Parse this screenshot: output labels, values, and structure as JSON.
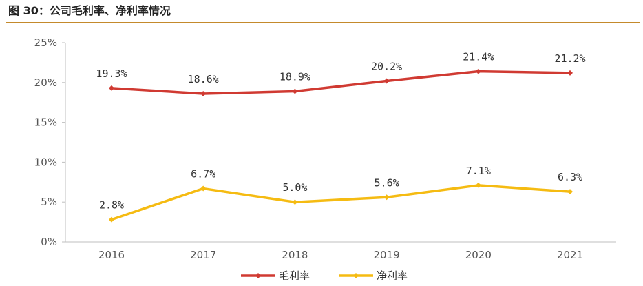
{
  "figure": {
    "title": "图 30：公司毛利率、净利率情况"
  },
  "colors": {
    "accent_rule": "#c48a2c",
    "gross": "#d03a32",
    "net": "#f5bb12"
  },
  "chart_data": {
    "type": "line",
    "categories": [
      "2016",
      "2017",
      "2018",
      "2019",
      "2020",
      "2021"
    ],
    "ylim": [
      0,
      25
    ],
    "yticks": [
      0,
      5,
      10,
      15,
      20,
      25
    ],
    "ytick_labels": [
      "0%",
      "5%",
      "10%",
      "15%",
      "20%",
      "25%"
    ],
    "grid": false,
    "legend_position": "bottom",
    "series": [
      {
        "name": "毛利率",
        "values": [
          19.3,
          18.6,
          18.9,
          20.2,
          21.4,
          21.2
        ],
        "labels": [
          "19.3%",
          "18.6%",
          "18.9%",
          "20.2%",
          "21.4%",
          "21.2%"
        ]
      },
      {
        "name": "净利率",
        "values": [
          2.8,
          6.7,
          5.0,
          5.6,
          7.1,
          6.3
        ],
        "labels": [
          "2.8%",
          "6.7%",
          "5.0%",
          "5.6%",
          "7.1%",
          "6.3%"
        ]
      }
    ]
  }
}
